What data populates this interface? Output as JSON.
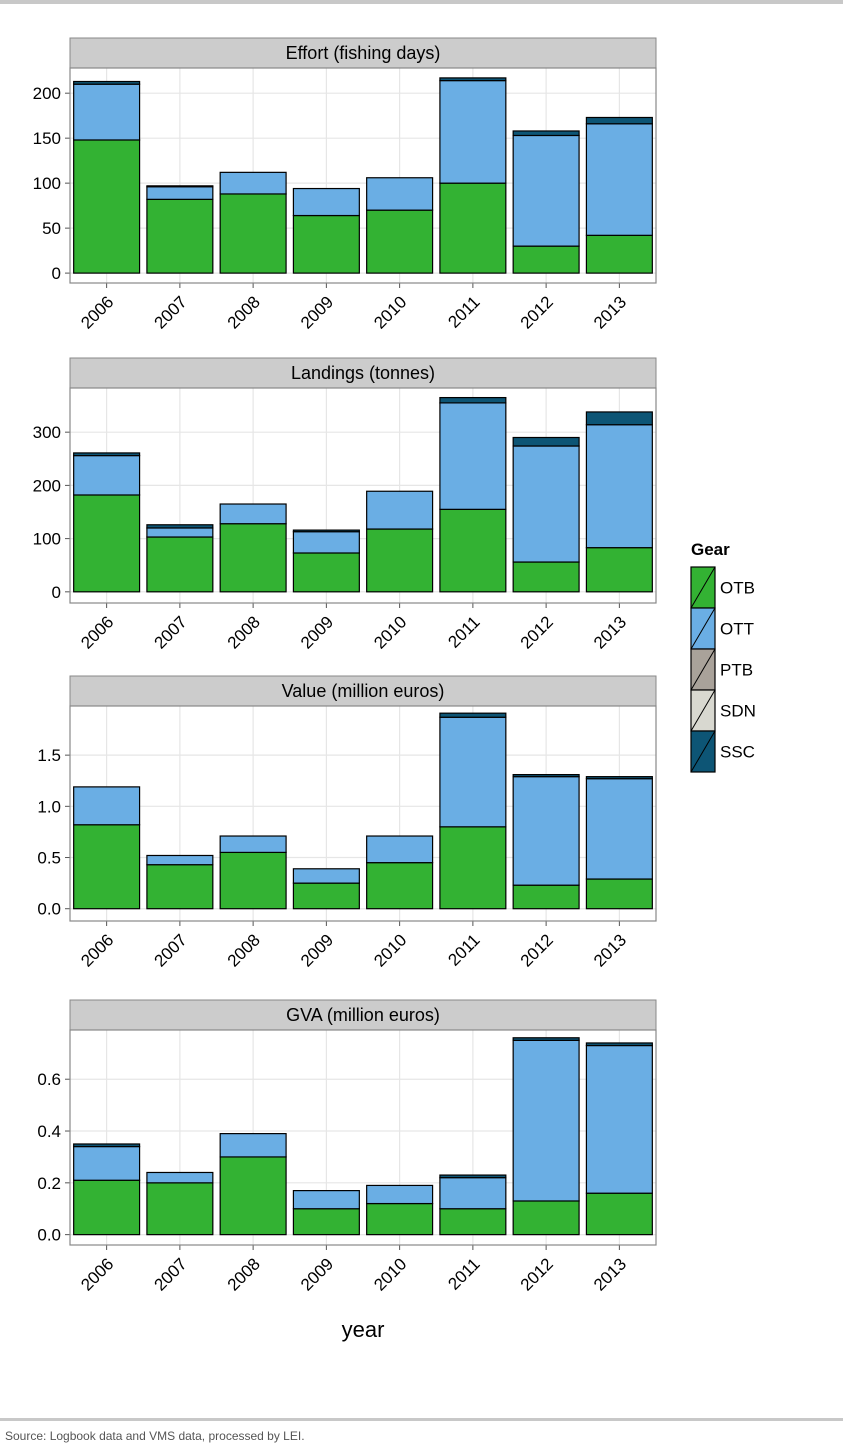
{
  "chart_data": [
    {
      "type": "bar",
      "stacked": true,
      "title": "Effort (fishing days)",
      "grid": true,
      "legend_position": "right",
      "legend_title": "Gear",
      "categories": [
        "2006",
        "2007",
        "2008",
        "2009",
        "2010",
        "2011",
        "2012",
        "2013"
      ],
      "series": [
        {
          "name": "OTB",
          "color": "#33b233",
          "values": [
            148,
            82,
            88,
            64,
            70,
            100,
            30,
            42
          ]
        },
        {
          "name": "OTT",
          "color": "#6aaee4",
          "values": [
            62,
            14,
            24,
            30,
            36,
            114,
            123,
            124
          ]
        },
        {
          "name": "PTB",
          "color": "#a9a29a",
          "values": [
            0,
            0,
            0,
            0,
            0,
            0,
            0,
            0
          ]
        },
        {
          "name": "SDN",
          "color": "#d8d8d0",
          "values": [
            0,
            0,
            0,
            0,
            0,
            0,
            0,
            0
          ]
        },
        {
          "name": "SSC",
          "color": "#0d5575",
          "values": [
            3,
            1,
            0,
            0,
            0,
            3,
            5,
            7
          ]
        }
      ],
      "ylim": [
        -11,
        228
      ],
      "yticks": [
        0,
        50,
        100,
        150,
        200
      ]
    },
    {
      "type": "bar",
      "stacked": true,
      "title": "Landings (tonnes)",
      "grid": true,
      "categories": [
        "2006",
        "2007",
        "2008",
        "2009",
        "2010",
        "2011",
        "2012",
        "2013"
      ],
      "series": [
        {
          "name": "OTB",
          "color": "#33b233",
          "values": [
            182,
            103,
            128,
            73,
            118,
            155,
            56,
            83
          ]
        },
        {
          "name": "OTT",
          "color": "#6aaee4",
          "values": [
            74,
            17,
            37,
            40,
            71,
            200,
            218,
            231
          ]
        },
        {
          "name": "PTB",
          "color": "#a9a29a",
          "values": [
            0,
            0,
            0,
            0,
            0,
            0,
            0,
            0
          ]
        },
        {
          "name": "SDN",
          "color": "#d8d8d0",
          "values": [
            0,
            0,
            0,
            0,
            0,
            0,
            0,
            0
          ]
        },
        {
          "name": "SSC",
          "color": "#0d5575",
          "values": [
            5,
            6,
            0,
            3,
            0,
            10,
            16,
            24
          ]
        }
      ],
      "ylim": [
        -21,
        383
      ],
      "yticks": [
        0,
        100,
        200,
        300
      ]
    },
    {
      "type": "bar",
      "stacked": true,
      "title": "Value (million euros)",
      "grid": true,
      "categories": [
        "2006",
        "2007",
        "2008",
        "2009",
        "2010",
        "2011",
        "2012",
        "2013"
      ],
      "series": [
        {
          "name": "OTB",
          "color": "#33b233",
          "values": [
            0.82,
            0.43,
            0.55,
            0.25,
            0.45,
            0.8,
            0.23,
            0.29
          ]
        },
        {
          "name": "OTT",
          "color": "#6aaee4",
          "values": [
            0.37,
            0.09,
            0.16,
            0.14,
            0.26,
            1.07,
            1.06,
            0.98
          ]
        },
        {
          "name": "PTB",
          "color": "#a9a29a",
          "values": [
            0,
            0,
            0,
            0,
            0,
            0,
            0,
            0
          ]
        },
        {
          "name": "SDN",
          "color": "#d8d8d0",
          "values": [
            0,
            0,
            0,
            0,
            0,
            0,
            0,
            0
          ]
        },
        {
          "name": "SSC",
          "color": "#0d5575",
          "values": [
            0,
            0,
            0,
            0,
            0,
            0.04,
            0.02,
            0.02
          ]
        }
      ],
      "ylim": [
        -0.12,
        1.98
      ],
      "yticks": [
        {
          "value": 0,
          "label": "0.0"
        },
        0.5,
        {
          "value": 1,
          "label": "1.0"
        },
        1.5
      ]
    },
    {
      "type": "bar",
      "stacked": true,
      "title": "GVA (million euros)",
      "grid": true,
      "x_label": "year",
      "categories": [
        "2006",
        "2007",
        "2008",
        "2009",
        "2010",
        "2011",
        "2012",
        "2013"
      ],
      "series": [
        {
          "name": "OTB",
          "color": "#33b233",
          "values": [
            0.21,
            0.2,
            0.3,
            0.1,
            0.12,
            0.1,
            0.13,
            0.16
          ]
        },
        {
          "name": "OTT",
          "color": "#6aaee4",
          "values": [
            0.13,
            0.04,
            0.09,
            0.07,
            0.07,
            0.12,
            0.62,
            0.57
          ]
        },
        {
          "name": "PTB",
          "color": "#a9a29a",
          "values": [
            0,
            0,
            0,
            0,
            0,
            0,
            0,
            0
          ]
        },
        {
          "name": "SDN",
          "color": "#d8d8d0",
          "values": [
            0,
            0,
            0,
            0,
            0,
            0,
            0,
            0
          ]
        },
        {
          "name": "SSC",
          "color": "#0d5575",
          "values": [
            0.01,
            0,
            0,
            0,
            0,
            0.01,
            0.01,
            0.01
          ]
        }
      ],
      "ylim": [
        -0.04,
        0.79
      ],
      "yticks": [
        {
          "value": 0,
          "label": "0.0"
        },
        0.2,
        0.4,
        0.6
      ]
    }
  ],
  "source": "Source: Logbook data and VMS data, processed by LEI."
}
